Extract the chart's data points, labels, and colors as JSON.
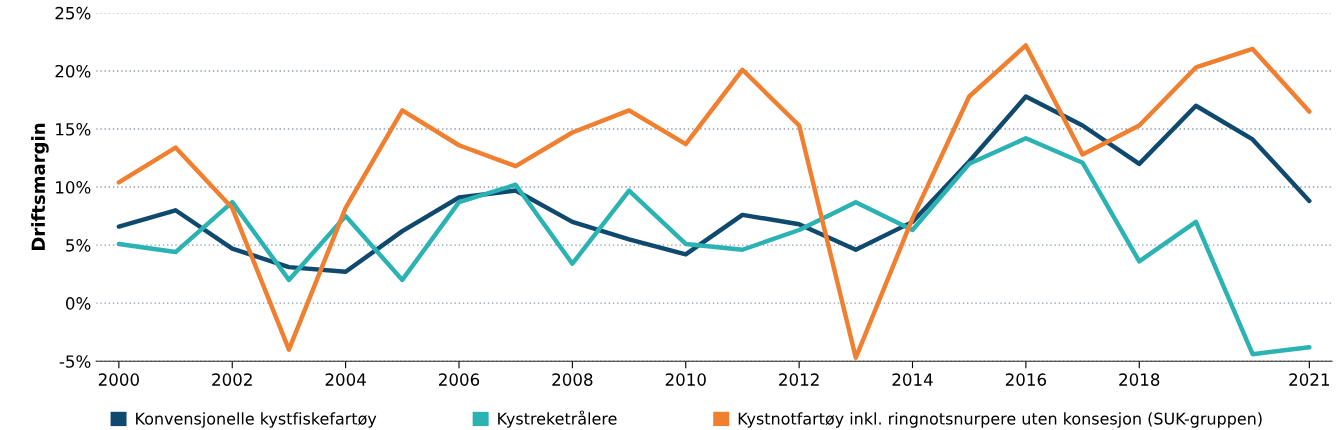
{
  "chart_data": {
    "type": "line",
    "ylabel": "Driftsmargin",
    "x": [
      2000,
      2001,
      2002,
      2003,
      2004,
      2005,
      2006,
      2007,
      2008,
      2009,
      2010,
      2011,
      2012,
      2013,
      2014,
      2015,
      2016,
      2017,
      2018,
      2019,
      2020,
      2021
    ],
    "series": [
      {
        "name": "Konvensjonelle kystfiskefartøy",
        "color": "#0f4a6e",
        "values": [
          6.6,
          8.0,
          4.7,
          3.1,
          2.7,
          6.2,
          9.1,
          9.7,
          7.0,
          5.5,
          4.2,
          7.6,
          6.8,
          4.6,
          7.0,
          12.2,
          17.8,
          15.3,
          12.0,
          17.0,
          14.1,
          8.8
        ]
      },
      {
        "name": "Kystreketrålere",
        "color": "#2bb3b3",
        "values": [
          5.1,
          4.4,
          8.7,
          2.0,
          7.5,
          2.0,
          8.7,
          10.2,
          3.4,
          9.7,
          5.1,
          4.6,
          6.3,
          8.7,
          6.3,
          12.0,
          14.2,
          12.1,
          3.6,
          7.0,
          -4.4,
          -3.8
        ]
      },
      {
        "name": "Kystnotfartøy inkl. ringnotsnurpere uten konsesjon (SUK-gruppen)",
        "color": "#f07f2f",
        "values": [
          10.4,
          13.4,
          8.2,
          -4.0,
          8.2,
          16.6,
          13.6,
          11.8,
          14.7,
          16.6,
          13.7,
          20.1,
          15.3,
          -4.7,
          7.3,
          17.8,
          22.2,
          12.8,
          15.3,
          20.3,
          21.9,
          16.5
        ]
      }
    ],
    "xlim": [
      1999.6,
      2021.4
    ],
    "xticks": [
      2000,
      2002,
      2004,
      2006,
      2008,
      2010,
      2012,
      2014,
      2016,
      2018,
      2021
    ],
    "ylim": [
      -5,
      25
    ],
    "yticks": [
      {
        "value": -5,
        "label": "-5%"
      },
      {
        "value": 0,
        "label": "0%"
      },
      {
        "value": 5,
        "label": "5%"
      },
      {
        "value": 10,
        "label": "10%"
      },
      {
        "value": 15,
        "label": "15%"
      },
      {
        "value": 20,
        "label": "20%"
      },
      {
        "value": 25,
        "label": "25%"
      }
    ],
    "grid": "y",
    "legend": "bottom",
    "marker": "none",
    "line_style": "solid"
  }
}
